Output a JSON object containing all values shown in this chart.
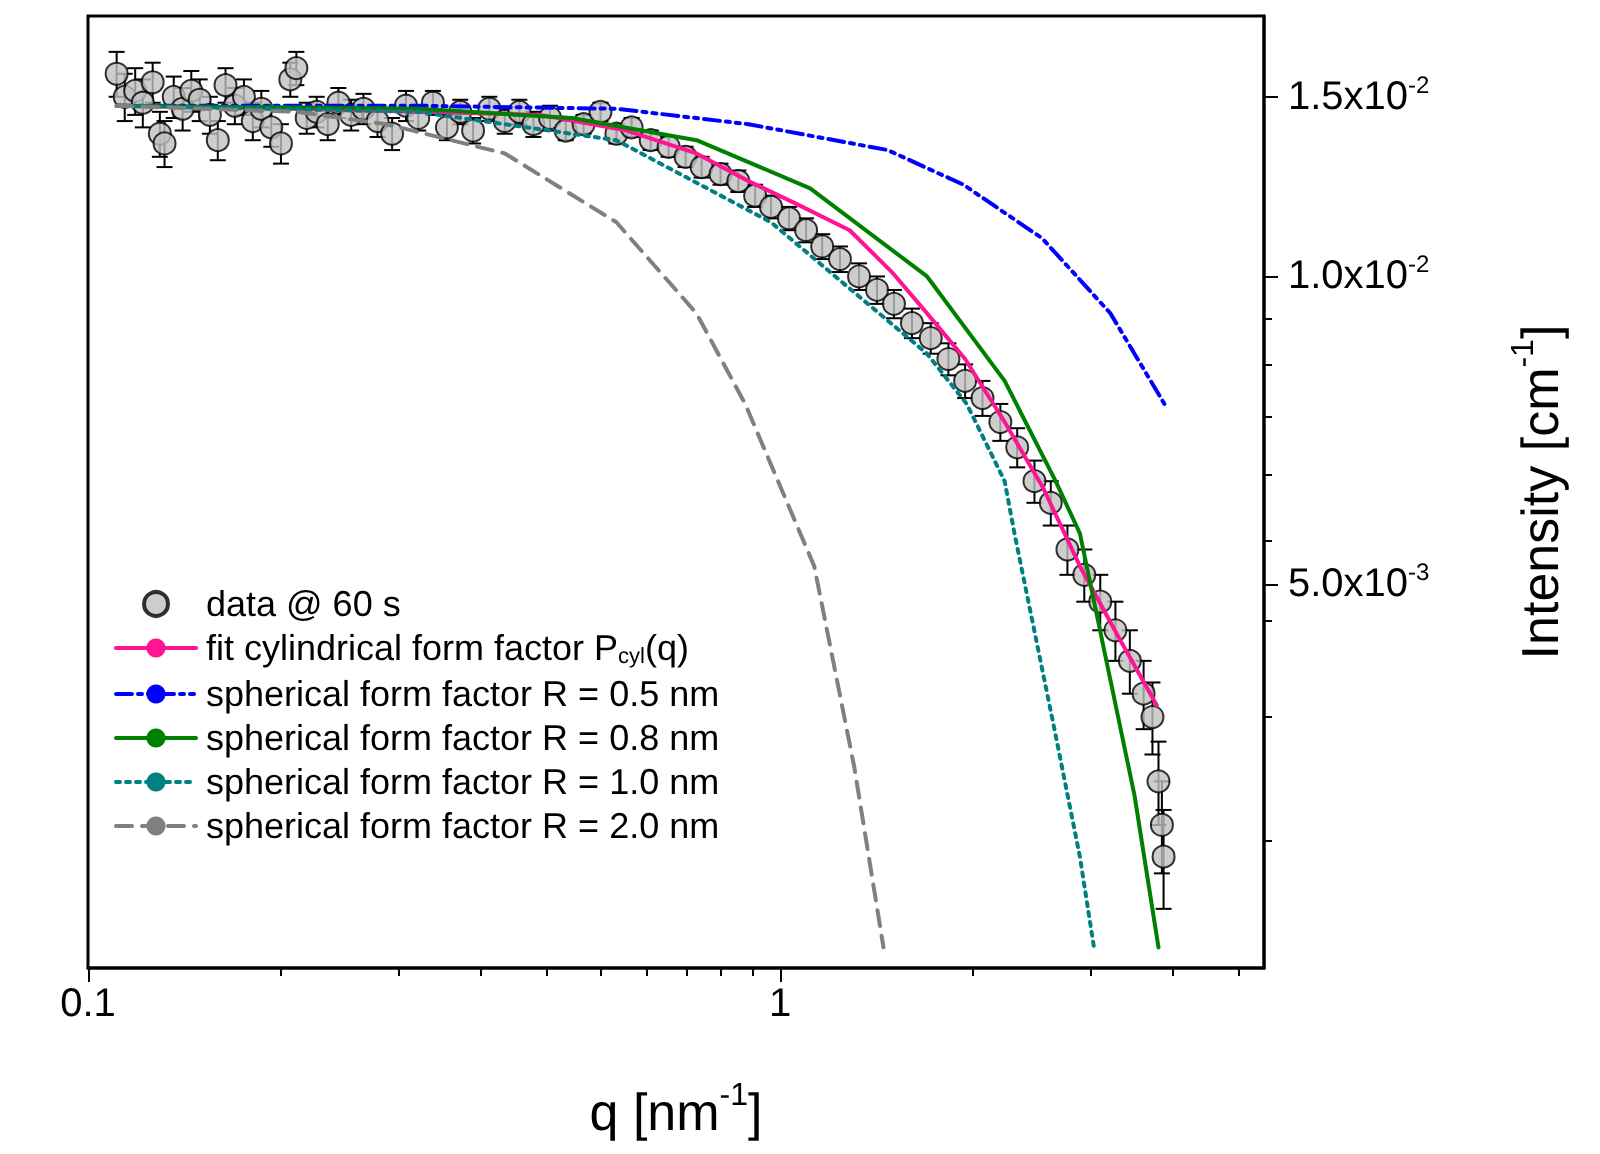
{
  "chart_data": {
    "type": "scatter",
    "xlabel": "q [nm$^{-1}$]",
    "ylabel": "Intensity [cm$^{-1}$]",
    "log": "xy",
    "grid": false,
    "legend": "bottom left",
    "marker": "circle",
    "xlim": [
      0.1,
      5
    ],
    "xticks": [
      0.1,
      1
    ],
    "ylim": [
      0.0021,
      0.018
    ],
    "yticks": [
      {
        "value": 0.005,
        "label": "5.0x10$^{-3}$"
      },
      {
        "value": 0.01,
        "label": "1.0x10$^{-2}$"
      },
      {
        "value": 0.015,
        "label": "1.5x10$^{-2}$"
      }
    ],
    "series": [
      {
        "name": "data @ 60 s",
        "color": "#c0c0c0",
        "x": [
          0.11,
          0.113,
          0.117,
          0.12,
          0.124,
          0.127,
          0.129,
          0.133,
          0.137,
          0.141,
          0.145,
          0.15,
          0.154,
          0.158,
          0.163,
          0.168,
          0.173,
          0.178,
          0.184,
          0.19,
          0.196,
          0.2,
          0.207,
          0.214,
          0.222,
          0.23,
          0.24,
          0.25,
          0.262,
          0.275,
          0.288,
          0.3,
          0.315,
          0.33,
          0.345,
          0.36,
          0.38,
          0.4,
          0.42,
          0.44,
          0.465,
          0.49,
          0.52,
          0.55,
          0.58,
          0.61,
          0.65,
          0.69,
          0.73,
          0.77,
          0.82,
          0.87,
          0.92,
          0.97,
          1.03,
          1.09,
          1.15,
          1.22,
          1.3,
          1.38,
          1.46,
          1.55,
          1.65,
          1.75,
          1.85,
          1.96,
          2.08,
          2.2,
          2.33,
          2.46,
          2.6,
          2.75,
          2.9,
          3.05,
          3.2,
          3.35,
          3.45,
          3.52,
          3.56,
          3.58
        ],
        "values": [
          0.0158,
          0.015,
          0.0152,
          0.0148,
          0.0155,
          0.0138,
          0.0135,
          0.015,
          0.0146,
          0.0152,
          0.0149,
          0.0144,
          0.0136,
          0.0154,
          0.0147,
          0.015,
          0.0142,
          0.0146,
          0.014,
          0.0135,
          0.0156,
          0.016,
          0.0143,
          0.0145,
          0.0141,
          0.0148,
          0.0144,
          0.0146,
          0.0142,
          0.0138,
          0.0147,
          0.0143,
          0.0148,
          0.014,
          0.0145,
          0.0139,
          0.0146,
          0.0142,
          0.0145,
          0.0141,
          0.0143,
          0.0139,
          0.0141,
          0.0145,
          0.0138,
          0.014,
          0.0136,
          0.0134,
          0.0131,
          0.0128,
          0.0126,
          0.0124,
          0.012,
          0.0117,
          0.0114,
          0.0111,
          0.0107,
          0.0104,
          0.01,
          0.0097,
          0.0094,
          0.009,
          0.0087,
          0.0083,
          0.0079,
          0.0076,
          0.0072,
          0.0068,
          0.0063,
          0.006,
          0.0054,
          0.0051,
          0.0048,
          0.0045,
          0.0042,
          0.0039,
          0.0037,
          0.0032,
          0.0029,
          0.0027
        ],
        "errors": [
          0.0008,
          0.0008,
          0.0008,
          0.0008,
          0.0007,
          0.0007,
          0.0007,
          0.0007,
          0.0007,
          0.0007,
          0.0007,
          0.0006,
          0.0006,
          0.0006,
          0.0006,
          0.0006,
          0.0006,
          0.0006,
          0.0006,
          0.0006,
          0.0006,
          0.0006,
          0.0005,
          0.0005,
          0.0005,
          0.0005,
          0.0005,
          0.0005,
          0.0005,
          0.0005,
          0.0005,
          0.0004,
          0.0004,
          0.0004,
          0.0004,
          0.0004,
          0.0004,
          0.0004,
          0.0004,
          0.0004,
          0.0004,
          0.0003,
          0.0003,
          0.0003,
          0.0003,
          0.0003,
          0.0003,
          0.0003,
          0.0003,
          0.0003,
          0.0003,
          0.0003,
          0.0003,
          0.0003,
          0.0003,
          0.0003,
          0.0003,
          0.0003,
          0.0003,
          0.0003,
          0.0003,
          0.0003,
          0.0003,
          0.0003,
          0.0003,
          0.0003,
          0.0003,
          0.0003,
          0.0003,
          0.0003,
          0.0003,
          0.0003,
          0.0003,
          0.0003,
          0.0003,
          0.0003,
          0.0003,
          0.0003,
          0.0003,
          0.0003
        ]
      },
      {
        "name": "fit cylindrical form factor P$_{cyl}$(q)",
        "type": "line",
        "marker": "none",
        "line_style": "solid",
        "color": "#ff1493",
        "x": [
          0.11,
          0.2,
          0.3,
          0.45,
          0.6,
          0.757,
          0.9,
          1.05,
          1.26,
          1.45,
          1.63,
          1.85,
          2.11,
          2.4,
          2.71,
          3.1,
          3.5
        ],
        "values": [
          0.0147,
          0.0146,
          0.0145,
          0.0144,
          0.0139,
          0.0132,
          0.0124,
          0.0118,
          0.0111,
          0.0101,
          0.0092,
          0.0083,
          0.0072,
          0.0062,
          0.0052,
          0.0044,
          0.0038
        ]
      },
      {
        "name": "spherical form factor R = 0.5 nm",
        "type": "line",
        "marker": "none",
        "line_style": "dashdot",
        "color": "#0000ff",
        "x": [
          0.11,
          0.3,
          0.58,
          0.9,
          1.43,
          1.84,
          2.39,
          3.0,
          3.59
        ],
        "values": [
          0.0147,
          0.0147,
          0.0146,
          0.0141,
          0.0133,
          0.0123,
          0.0109,
          0.0092,
          0.0075
        ]
      },
      {
        "name": "spherical form factor R = 0.8 nm",
        "type": "line",
        "marker": "none",
        "line_style": "solid",
        "color": "#008000",
        "x": [
          0.11,
          0.3,
          0.5,
          0.757,
          1.105,
          1.63,
          2.11,
          2.5,
          2.71,
          2.96,
          3.25,
          3.52
        ],
        "values": [
          0.0147,
          0.0146,
          0.0143,
          0.0136,
          0.0122,
          0.01,
          0.0079,
          0.0063,
          0.0056,
          0.0042,
          0.0031,
          0.0022
        ]
      },
      {
        "name": "spherical form factor R = 1.0 nm",
        "type": "line",
        "marker": "none",
        "line_style": "dotted",
        "color": "#008080",
        "x": [
          0.11,
          0.3,
          0.58,
          0.97,
          1.63,
          1.86,
          2.11,
          2.18,
          2.49,
          2.71,
          2.84
        ],
        "values": [
          0.0147,
          0.0145,
          0.0136,
          0.0113,
          0.0084,
          0.0075,
          0.0063,
          0.0056,
          0.0036,
          0.0027,
          0.0022
        ]
      },
      {
        "name": "spherical form factor R = 2.0 nm",
        "type": "line",
        "marker": "none",
        "line_style": "dashed",
        "color": "#808080",
        "x": [
          0.11,
          0.2,
          0.27,
          0.4,
          0.58,
          0.757,
          0.89,
          1.12,
          1.28,
          1.41
        ],
        "values": [
          0.0147,
          0.0145,
          0.0141,
          0.0132,
          0.0113,
          0.0092,
          0.0075,
          0.0052,
          0.0033,
          0.0022
        ]
      }
    ]
  }
}
